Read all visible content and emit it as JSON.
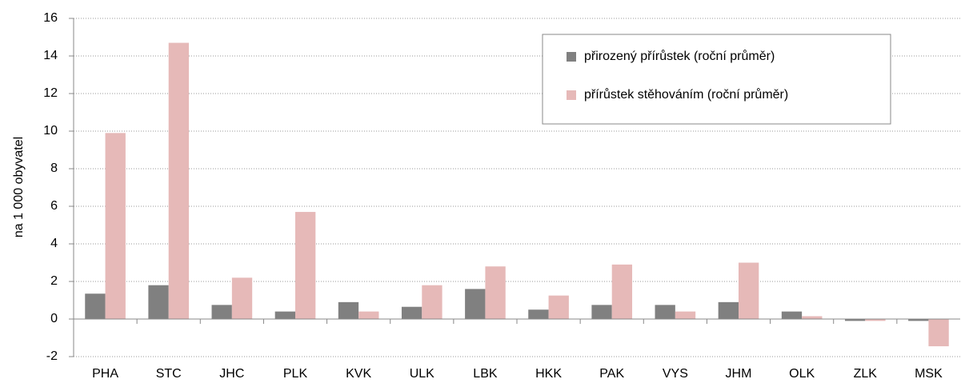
{
  "chart_data": {
    "type": "bar",
    "y_label": "na 1 000 obyvatel",
    "categories": [
      "PHA",
      "STC",
      "JHC",
      "PLK",
      "KVK",
      "ULK",
      "LBK",
      "HKK",
      "PAK",
      "VYS",
      "JHM",
      "OLK",
      "ZLK",
      "MSK"
    ],
    "series": [
      {
        "name": "přirozený přírůstek (roční průměr)",
        "color": "#808080",
        "values": [
          1.35,
          1.8,
          0.75,
          0.4,
          0.9,
          0.65,
          1.6,
          0.5,
          0.75,
          0.75,
          0.9,
          0.4,
          -0.1,
          -0.1
        ]
      },
      {
        "name": "přírůstek stěhováním (roční průměr)",
        "color": "#e6b9b8",
        "values": [
          9.9,
          14.7,
          2.2,
          5.7,
          0.4,
          1.8,
          2.8,
          1.25,
          2.9,
          0.4,
          3.0,
          0.15,
          -0.1,
          -1.45
        ]
      }
    ],
    "ylim": [
      -2,
      16
    ],
    "yticks": [
      -2,
      0,
      2,
      4,
      6,
      8,
      10,
      12,
      14,
      16
    ],
    "grid": true,
    "legend": "top-right"
  }
}
